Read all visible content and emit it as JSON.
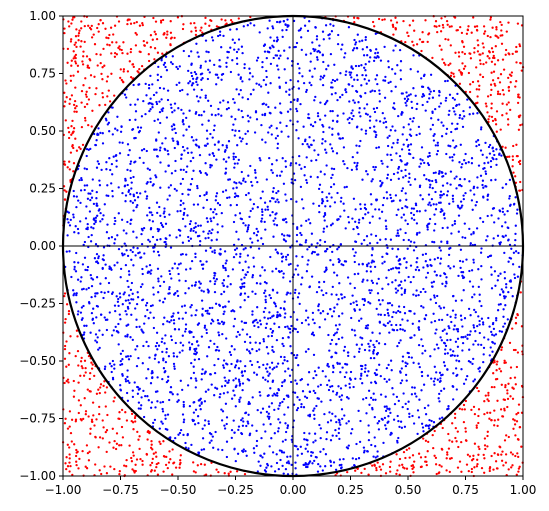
{
  "chart_data": {
    "type": "scatter",
    "title": "",
    "xlabel": "",
    "ylabel": "",
    "xlim": [
      -1.0,
      1.0
    ],
    "ylim": [
      -1.0,
      1.0
    ],
    "grid": false,
    "legend": "none",
    "x_ticks": [
      "−1.00",
      "−0.75",
      "−0.50",
      "−0.25",
      "0.00",
      "0.25",
      "0.50",
      "0.75",
      "1.00"
    ],
    "y_ticks": [
      "1.00",
      "0.75",
      "0.50",
      "0.25",
      "0.00",
      "−0.25",
      "−0.50",
      "−0.75",
      "−1.00"
    ],
    "x_tick_values": [
      -1.0,
      -0.75,
      -0.5,
      -0.25,
      0.0,
      0.25,
      0.5,
      0.75,
      1.0
    ],
    "y_tick_values": [
      1.0,
      0.75,
      0.5,
      0.25,
      0.0,
      -0.25,
      -0.5,
      -0.75,
      -1.0
    ],
    "reference_lines": {
      "x": 0.0,
      "y": 0.0
    },
    "circle": {
      "center": [
        0.0,
        0.0
      ],
      "radius": 1.0,
      "color": "#000000"
    },
    "series": [
      {
        "color": "#0000ff",
        "region": "inside unit circle",
        "approx_count": 4000
      },
      {
        "color": "#ff0000",
        "region": "outside unit circle",
        "approx_count": 1100
      }
    ],
    "total_points": 5000,
    "sample_uniform_square": [
      -1.0,
      1.0
    ]
  }
}
